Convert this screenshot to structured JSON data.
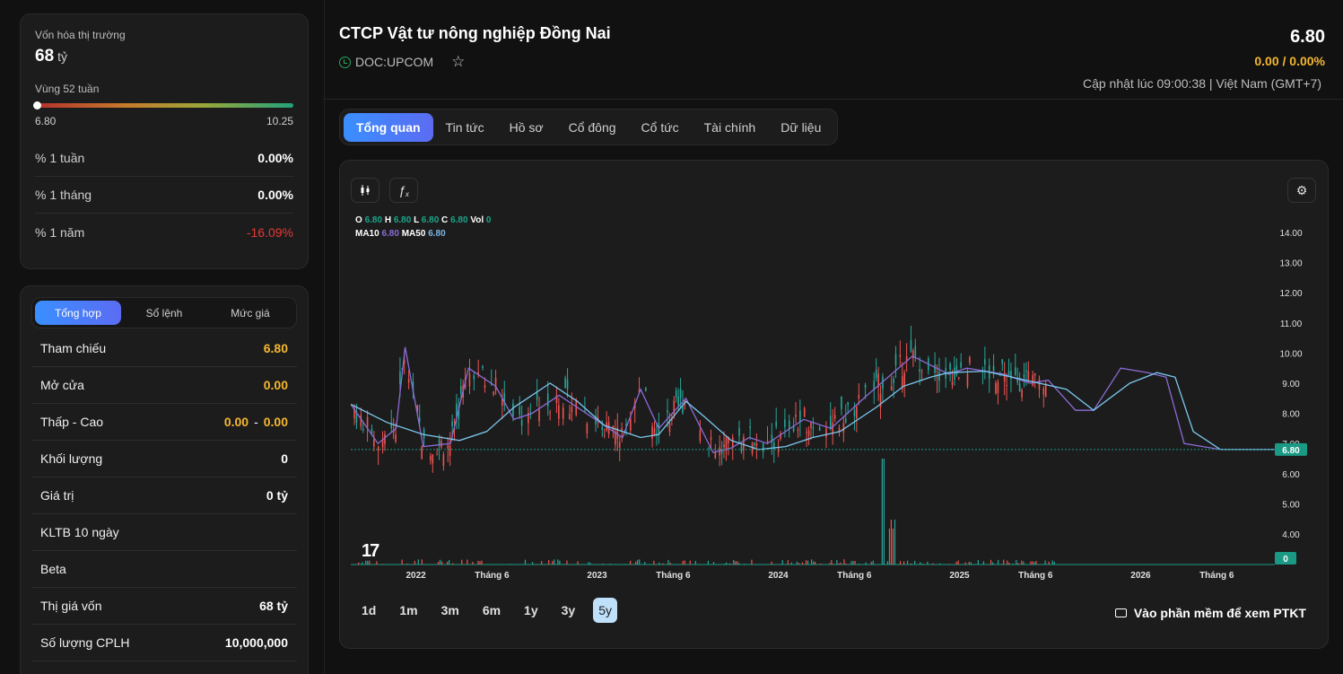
{
  "left": {
    "market_cap_label": "Vốn hóa thị trường",
    "market_cap_value": "68",
    "market_cap_unit": "tỷ",
    "range_label": "Vùng 52 tuần",
    "range_low": "6.80",
    "range_high": "10.25",
    "range_position": 0.0,
    "perf": [
      {
        "label": "% 1 tuần",
        "value": "0.00%"
      },
      {
        "label": "% 1 tháng",
        "value": "0.00%"
      },
      {
        "label": "% 1 năm",
        "value": "-16.09%"
      }
    ],
    "seg_tabs": [
      "Tổng hợp",
      "Sổ lệnh",
      "Mức giá"
    ],
    "rows": [
      {
        "label": "Tham chiếu",
        "value": "6.80"
      },
      {
        "label": "Mở cửa",
        "value": "0.00"
      },
      {
        "label": "Thấp - Cao",
        "low": "0.00",
        "sep": "-",
        "high": "0.00"
      },
      {
        "label": "Khối lượng",
        "value": "0"
      },
      {
        "label": "Giá trị",
        "value": "0 tỷ"
      },
      {
        "label": "KLTB 10 ngày",
        "value": ""
      },
      {
        "label": "Beta",
        "value": ""
      },
      {
        "label": "Thị giá vốn",
        "value": "68 tỷ"
      },
      {
        "label": "Số lượng CPLH",
        "value": "10,000,000"
      }
    ]
  },
  "header": {
    "title": "CTCP Vật tư nông nghiệp Đồng Nai",
    "ticker": "DOC:UPCOM",
    "price": "6.80",
    "change": "0.00 / 0.00%",
    "updated": "Cập nhật lúc 09:00:38 | Việt Nam (GMT+7)"
  },
  "tabs": [
    "Tổng quan",
    "Tin tức",
    "Hồ sơ",
    "Cổ đông",
    "Cổ tức",
    "Tài chính",
    "Dữ liệu"
  ],
  "chart": {
    "legend": {
      "o_label": "O",
      "o": "6.80",
      "h_label": "H",
      "h": "6.80",
      "l_label": "L",
      "l": "6.80",
      "c_label": "C",
      "c": "6.80",
      "vol_label": "Vol",
      "vol": "0",
      "ma10_label": "MA10",
      "ma10": "6.80",
      "ma50_label": "MA50",
      "ma50": "6.80"
    },
    "logo": "17",
    "ranges": [
      "1d",
      "1m",
      "3m",
      "6m",
      "1y",
      "3y",
      "5y"
    ],
    "active_range": "5y",
    "ptkt_label": "Vào phần mềm để xem PTKT",
    "colors": {
      "up": "#26a69a",
      "down": "#ef5350",
      "ma10": "#8b6bd6",
      "ma50": "#7bc8f0",
      "last": "#1a9a84"
    }
  },
  "chart_data": {
    "type": "line",
    "y_ticks": [
      "14.00",
      "13.00",
      "12.00",
      "11.00",
      "10.00",
      "9.00",
      "8.00",
      "7.00",
      "6.00",
      "5.00",
      "4.00"
    ],
    "ylim": [
      3.0,
      14.5
    ],
    "x_ticks": [
      "2022",
      "Tháng 6",
      "2023",
      "Tháng 6",
      "2024",
      "Tháng 6",
      "2025",
      "Tháng 6",
      "2026",
      "Tháng 6"
    ],
    "last_price": "6.80",
    "last_volume": "0",
    "series": [
      {
        "name": "MA10",
        "x": [
          2021.7,
          2021.85,
          2021.95,
          2022.0,
          2022.1,
          2022.25,
          2022.35,
          2022.5,
          2022.6,
          2022.7,
          2022.85,
          2023.0,
          2023.2,
          2023.3,
          2023.4,
          2023.55,
          2023.7,
          2023.8,
          2023.9,
          2024.0,
          2024.2,
          2024.35,
          2024.55,
          2024.8,
          2025.0,
          2025.1,
          2025.3,
          2025.45,
          2025.55,
          2025.7,
          2025.8,
          2025.95,
          2026.1,
          2026.2,
          2026.3,
          2026.5,
          2026.8
        ],
        "values": [
          8.3,
          7.0,
          7.5,
          10.2,
          6.9,
          7.0,
          9.5,
          8.9,
          7.8,
          8.0,
          8.6,
          8.0,
          7.2,
          8.8,
          7.5,
          8.5,
          6.7,
          6.85,
          7.2,
          7.0,
          7.8,
          7.5,
          8.6,
          9.9,
          9.3,
          9.5,
          9.3,
          9.0,
          9.1,
          8.1,
          8.1,
          9.5,
          9.35,
          9.2,
          7.0,
          6.8,
          6.8
        ]
      },
      {
        "name": "MA50",
        "x": [
          2021.7,
          2021.9,
          2022.1,
          2022.3,
          2022.45,
          2022.6,
          2022.8,
          2022.95,
          2023.1,
          2023.3,
          2023.4,
          2023.55,
          2023.65,
          2023.8,
          2023.95,
          2024.1,
          2024.25,
          2024.4,
          2024.6,
          2024.75,
          2024.9,
          2025.0,
          2025.2,
          2025.35,
          2025.5,
          2025.65,
          2025.8,
          2026.0,
          2026.15,
          2026.25,
          2026.35,
          2026.5,
          2026.8
        ],
        "values": [
          8.3,
          7.7,
          7.3,
          7.1,
          7.4,
          8.2,
          9.0,
          8.4,
          7.6,
          7.2,
          7.3,
          8.4,
          7.9,
          7.1,
          6.8,
          6.9,
          7.2,
          7.4,
          8.2,
          8.9,
          9.2,
          9.35,
          9.4,
          9.2,
          9.0,
          8.8,
          8.1,
          9.0,
          9.35,
          9.2,
          7.4,
          6.8,
          6.8
        ]
      }
    ]
  }
}
